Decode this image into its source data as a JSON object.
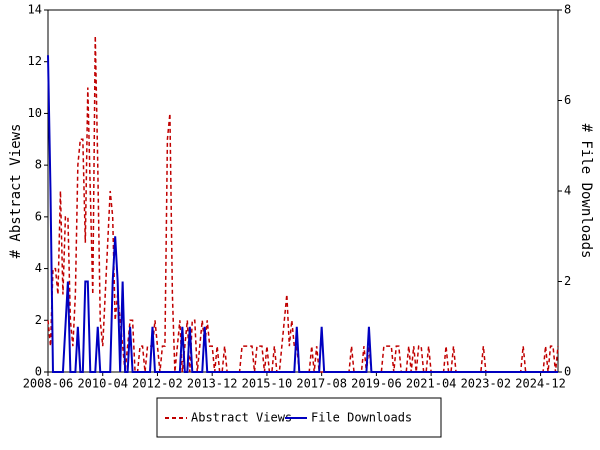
{
  "chart_data": {
    "type": "line",
    "x": [
      "2008-06",
      "2008-07",
      "2008-08",
      "2008-09",
      "2008-10",
      "2008-11",
      "2008-12",
      "2009-01",
      "2009-02",
      "2009-03",
      "2009-04",
      "2009-05",
      "2009-06",
      "2009-07",
      "2009-08",
      "2009-09",
      "2009-10",
      "2009-11",
      "2009-12",
      "2010-01",
      "2010-02",
      "2010-03",
      "2010-04",
      "2010-05",
      "2010-06",
      "2010-07",
      "2010-08",
      "2010-09",
      "2010-10",
      "2010-11",
      "2010-12",
      "2011-01",
      "2011-02",
      "2011-03",
      "2011-04",
      "2011-05",
      "2011-06",
      "2011-07",
      "2011-08",
      "2011-09",
      "2011-10",
      "2011-11",
      "2011-12",
      "2012-01",
      "2012-02",
      "2012-03",
      "2012-04",
      "2012-05",
      "2012-06",
      "2012-07",
      "2012-08",
      "2012-09",
      "2012-10",
      "2012-11",
      "2012-12",
      "2013-01",
      "2013-02",
      "2013-03",
      "2013-04",
      "2013-05",
      "2013-06",
      "2013-07",
      "2013-08",
      "2013-09",
      "2013-10",
      "2013-11",
      "2013-12",
      "2014-01",
      "2014-02",
      "2014-03",
      "2014-04",
      "2014-05",
      "2014-06",
      "2014-07",
      "2014-08",
      "2014-09",
      "2014-10",
      "2014-11",
      "2014-12",
      "2015-01",
      "2015-02",
      "2015-03",
      "2015-04",
      "2015-05",
      "2015-06",
      "2015-07",
      "2015-08",
      "2015-09",
      "2015-10",
      "2015-11",
      "2015-12",
      "2016-01",
      "2016-02",
      "2016-03",
      "2016-04",
      "2016-05",
      "2016-06",
      "2016-07",
      "2016-08",
      "2016-09",
      "2016-10",
      "2016-11",
      "2016-12",
      "2017-01",
      "2017-02",
      "2017-03",
      "2017-04",
      "2017-05",
      "2017-06",
      "2017-07",
      "2017-08",
      "2017-09",
      "2017-10",
      "2017-11",
      "2017-12",
      "2018-01",
      "2018-02",
      "2018-03",
      "2018-04",
      "2018-05",
      "2018-06",
      "2018-07",
      "2018-08",
      "2018-09",
      "2018-10",
      "2018-11",
      "2018-12",
      "2019-01",
      "2019-02",
      "2019-03",
      "2019-04",
      "2019-05",
      "2019-06",
      "2019-07",
      "2019-08",
      "2019-09",
      "2019-10",
      "2019-11",
      "2019-12",
      "2020-01",
      "2020-02",
      "2020-03",
      "2020-04",
      "2020-05",
      "2020-06",
      "2020-07",
      "2020-08",
      "2020-09",
      "2020-10",
      "2020-11",
      "2020-12",
      "2021-01",
      "2021-02",
      "2021-03",
      "2021-04",
      "2021-05",
      "2021-06",
      "2021-07",
      "2021-08",
      "2021-09",
      "2021-10",
      "2021-11",
      "2021-12",
      "2022-01",
      "2022-02",
      "2022-03",
      "2022-04",
      "2022-05",
      "2022-06",
      "2022-07",
      "2022-08",
      "2022-09",
      "2022-10",
      "2022-11",
      "2022-12",
      "2023-01",
      "2023-02",
      "2023-03",
      "2023-04",
      "2023-05",
      "2023-06",
      "2023-07",
      "2023-08",
      "2023-09",
      "2023-10",
      "2023-11",
      "2023-12",
      "2024-01",
      "2024-02",
      "2024-03",
      "2024-04",
      "2024-05",
      "2024-06",
      "2024-07",
      "2024-08",
      "2024-09",
      "2024-10",
      "2024-11",
      "2024-12",
      "2025-01",
      "2025-02",
      "2025-03",
      "2025-04",
      "2025-05",
      "2025-06",
      "2025-07"
    ],
    "xticks": [
      "2008-06",
      "2010-04",
      "2012-02",
      "2013-12",
      "2015-10",
      "2017-08",
      "2019-06",
      "2021-04",
      "2023-02",
      "2024-12"
    ],
    "ylabel": "# Abstract Views",
    "y2label": "# File Downloads",
    "ylim": [
      0,
      14
    ],
    "yticks": [
      0,
      2,
      4,
      6,
      8,
      10,
      12,
      14
    ],
    "y2lim": [
      0,
      8
    ],
    "y2ticks": [
      0,
      2,
      4,
      6,
      8
    ],
    "series": [
      {
        "name": "Abstract Views",
        "color": "#c00000",
        "dash": true,
        "values": [
          2,
          1,
          4,
          4,
          3,
          7,
          3,
          6,
          6,
          2,
          1,
          3,
          8,
          9,
          9,
          5,
          11,
          7,
          3,
          13,
          8,
          2,
          1,
          3,
          5,
          7,
          6,
          2,
          3,
          2,
          1,
          0,
          1,
          2,
          2,
          0,
          0,
          1,
          1,
          0,
          1,
          1,
          1,
          2,
          1,
          0,
          1,
          1,
          9,
          10,
          3,
          0,
          1,
          2,
          0,
          1,
          2,
          0,
          2,
          2,
          0,
          1,
          2,
          1,
          2,
          1,
          1,
          0,
          1,
          0,
          0,
          1,
          0,
          0,
          0,
          0,
          0,
          0,
          1,
          1,
          1,
          1,
          1,
          0,
          1,
          1,
          1,
          0,
          1,
          0,
          0,
          1,
          0,
          0,
          1,
          2,
          3,
          1,
          2,
          1,
          1,
          0,
          0,
          0,
          0,
          0,
          1,
          0,
          1,
          0,
          0,
          0,
          0,
          0,
          0,
          0,
          0,
          0,
          0,
          0,
          0,
          0,
          1,
          0,
          0,
          0,
          0,
          1,
          0,
          1,
          0,
          0,
          0,
          0,
          0,
          1,
          1,
          1,
          1,
          0,
          1,
          1,
          0,
          0,
          0,
          1,
          0,
          1,
          0,
          1,
          1,
          0,
          0,
          1,
          0,
          0,
          0,
          0,
          0,
          0,
          1,
          0,
          0,
          1,
          0,
          0,
          0,
          0,
          0,
          0,
          0,
          0,
          0,
          0,
          0,
          1,
          0,
          0,
          0,
          0,
          0,
          0,
          0,
          0,
          0,
          0,
          0,
          0,
          0,
          0,
          0,
          1,
          0,
          0,
          0,
          0,
          0,
          0,
          0,
          0,
          1,
          0,
          1,
          1,
          0,
          1
        ]
      },
      {
        "name": "File Downloads",
        "color": "#0000c0",
        "dash": false,
        "axis": "y2",
        "values": [
          7,
          4,
          0,
          0,
          0,
          0,
          0,
          1,
          2,
          0,
          0,
          0,
          1,
          0,
          0,
          2,
          2,
          0,
          0,
          0,
          1,
          0,
          0,
          0,
          0,
          0,
          2,
          3,
          2,
          0,
          2,
          0,
          0,
          1,
          0,
          0,
          0,
          0,
          0,
          0,
          0,
          0,
          1,
          0,
          0,
          0,
          0,
          0,
          0,
          0,
          0,
          0,
          0,
          0,
          1,
          0,
          0,
          1,
          0,
          0,
          0,
          0,
          0,
          1,
          0,
          0,
          0,
          0,
          0,
          0,
          0,
          0,
          0,
          0,
          0,
          0,
          0,
          0,
          0,
          0,
          0,
          0,
          0,
          0,
          0,
          0,
          0,
          0,
          0,
          0,
          0,
          0,
          0,
          0,
          0,
          0,
          0,
          0,
          0,
          0,
          1,
          0,
          0,
          0,
          0,
          0,
          0,
          0,
          0,
          0,
          1,
          0,
          0,
          0,
          0,
          0,
          0,
          0,
          0,
          0,
          0,
          0,
          0,
          0,
          0,
          0,
          0,
          0,
          0,
          1,
          0,
          0,
          0,
          0,
          0,
          0,
          0,
          0,
          0,
          0,
          0,
          0,
          0,
          0,
          0,
          0,
          0,
          0,
          0,
          0,
          0,
          0,
          0,
          0,
          0,
          0,
          0,
          0,
          0,
          0,
          0,
          0,
          0,
          0,
          0,
          0,
          0,
          0,
          0,
          0,
          0,
          0,
          0,
          0,
          0,
          0,
          0,
          0,
          0,
          0,
          0,
          0,
          0,
          0,
          0,
          0,
          0,
          0,
          0,
          0,
          0,
          0,
          0,
          0,
          0,
          0,
          0,
          0,
          0,
          0,
          0,
          0,
          0,
          0,
          0,
          0
        ]
      }
    ]
  }
}
